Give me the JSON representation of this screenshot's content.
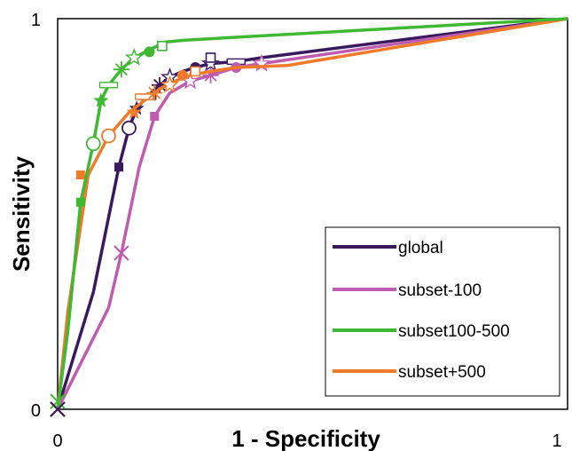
{
  "chart_data": {
    "type": "line",
    "xlabel": "1 - Specificity",
    "ylabel": "Sensitivity",
    "xlim": [
      0,
      1
    ],
    "ylim": [
      0,
      1
    ],
    "xticks": [
      "0",
      "1"
    ],
    "yticks": [
      "0",
      "1"
    ],
    "grid": false,
    "legend_position": "bottom-right",
    "series": [
      {
        "name": "global",
        "color": "#3a1a5e",
        "points": [
          [
            0,
            0
          ],
          [
            0.07,
            0.3
          ],
          [
            0.12,
            0.62
          ],
          [
            0.14,
            0.72
          ],
          [
            0.155,
            0.77
          ],
          [
            0.175,
            0.8
          ],
          [
            0.2,
            0.83
          ],
          [
            0.22,
            0.85
          ],
          [
            0.245,
            0.865
          ],
          [
            0.27,
            0.875
          ],
          [
            0.3,
            0.885
          ],
          [
            0.35,
            0.89
          ],
          [
            0.4,
            0.9
          ],
          [
            1,
            1
          ]
        ],
        "markers": [
          [
            0.12,
            0.62,
            "square"
          ],
          [
            0.14,
            0.72,
            "circle-open"
          ],
          [
            0.155,
            0.77,
            "star"
          ],
          [
            0.175,
            0.8,
            "dash-open"
          ],
          [
            0.2,
            0.83,
            "asterisk"
          ],
          [
            0.22,
            0.85,
            "star-open"
          ],
          [
            0.27,
            0.875,
            "circle"
          ],
          [
            0.3,
            0.885,
            "star-open"
          ],
          [
            0.35,
            0.89,
            "dash-open"
          ],
          [
            0.3,
            0.9,
            "square-open"
          ]
        ]
      },
      {
        "name": "subset-100",
        "color": "#c05cb0",
        "points": [
          [
            0,
            0
          ],
          [
            0.05,
            0.13
          ],
          [
            0.1,
            0.26
          ],
          [
            0.125,
            0.4
          ],
          [
            0.16,
            0.62
          ],
          [
            0.19,
            0.75
          ],
          [
            0.22,
            0.81
          ],
          [
            0.26,
            0.84
          ],
          [
            0.3,
            0.855
          ],
          [
            0.35,
            0.875
          ],
          [
            0.4,
            0.885
          ],
          [
            1,
            1
          ]
        ],
        "markers": [
          [
            0.125,
            0.4,
            "x"
          ],
          [
            0.19,
            0.75,
            "square"
          ],
          [
            0.26,
            0.84,
            "star-open"
          ],
          [
            0.3,
            0.855,
            "asterisk"
          ],
          [
            0.35,
            0.875,
            "circle"
          ],
          [
            0.4,
            0.885,
            "star-open"
          ]
        ]
      },
      {
        "name": "subset100-500",
        "color": "#3fb833",
        "points": [
          [
            0,
            0
          ],
          [
            0.02,
            0.2
          ],
          [
            0.045,
            0.53
          ],
          [
            0.07,
            0.68
          ],
          [
            0.085,
            0.79
          ],
          [
            0.1,
            0.83
          ],
          [
            0.125,
            0.87
          ],
          [
            0.15,
            0.9
          ],
          [
            0.18,
            0.92
          ],
          [
            0.21,
            0.94
          ],
          [
            0.25,
            0.945
          ],
          [
            1,
            1
          ]
        ],
        "markers": [
          [
            0,
            0.02,
            "x"
          ],
          [
            0.045,
            0.53,
            "square"
          ],
          [
            0.07,
            0.68,
            "circle-open"
          ],
          [
            0.085,
            0.79,
            "star"
          ],
          [
            0.1,
            0.83,
            "dash-open"
          ],
          [
            0.125,
            0.87,
            "asterisk"
          ],
          [
            0.15,
            0.9,
            "star-open"
          ],
          [
            0.18,
            0.915,
            "circle"
          ],
          [
            0.205,
            0.93,
            "square-open"
          ]
        ]
      },
      {
        "name": "subset+500",
        "color": "#ee7a2a",
        "points": [
          [
            0,
            0
          ],
          [
            0.02,
            0.25
          ],
          [
            0.06,
            0.6
          ],
          [
            0.1,
            0.7
          ],
          [
            0.14,
            0.76
          ],
          [
            0.17,
            0.79
          ],
          [
            0.2,
            0.82
          ],
          [
            0.23,
            0.84
          ],
          [
            0.26,
            0.855
          ],
          [
            0.3,
            0.865
          ],
          [
            0.35,
            0.875
          ],
          [
            0.45,
            0.88
          ],
          [
            1,
            1
          ]
        ],
        "markers": [
          [
            0.045,
            0.6,
            "square"
          ],
          [
            0.1,
            0.7,
            "circle-open"
          ],
          [
            0.15,
            0.76,
            "star"
          ],
          [
            0.17,
            0.8,
            "dash-open"
          ],
          [
            0.19,
            0.81,
            "asterisk"
          ],
          [
            0.22,
            0.83,
            "star-open"
          ],
          [
            0.245,
            0.855,
            "circle"
          ],
          [
            0.27,
            0.865,
            "square-open"
          ]
        ]
      }
    ]
  }
}
